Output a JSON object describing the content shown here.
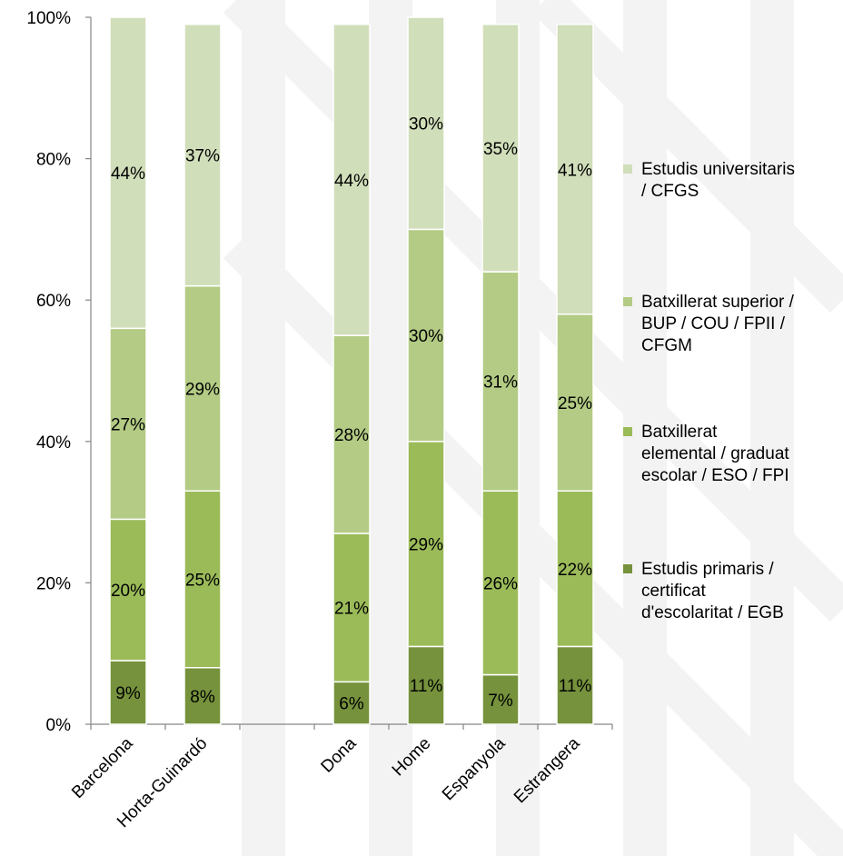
{
  "chart_data": {
    "type": "stacked-bar-100",
    "categories": [
      "Barcelona",
      "Horta-Guinardó",
      "",
      "Dona",
      "Home",
      "Espanyola",
      "Estrangera"
    ],
    "series": [
      {
        "name": "Estudis primaris / certificat d'escolaritat / EGB",
        "color": "#76923c",
        "values": [
          9,
          8,
          null,
          6,
          11,
          7,
          11
        ],
        "labels": [
          "9%",
          "8%",
          "",
          "6%",
          "11%",
          "7%",
          "11%"
        ]
      },
      {
        "name": "Batxillerat elemental / graduat escolar / ESO / FPI",
        "color": "#9bbb59",
        "values": [
          20,
          25,
          null,
          21,
          29,
          26,
          22
        ],
        "labels": [
          "20%",
          "25%",
          "",
          "21%",
          "29%",
          "26%",
          "22%"
        ]
      },
      {
        "name": "Batxillerat superior / BUP / COU / FPII / CFGM",
        "color": "#b3cb84",
        "values": [
          27,
          29,
          null,
          28,
          30,
          31,
          25
        ],
        "labels": [
          "27%",
          "29%",
          "",
          "28%",
          "30%",
          "31%",
          "25%"
        ]
      },
      {
        "name": "Estudis universitaris / CFGS",
        "color": "#d1deba",
        "values": [
          44,
          37,
          null,
          44,
          30,
          35,
          41
        ],
        "labels": [
          "44%",
          "37%",
          "",
          "44%",
          "30%",
          "35%",
          "41%"
        ]
      }
    ],
    "yticks": [
      "0%",
      "20%",
      "40%",
      "60%",
      "80%",
      "100%"
    ],
    "ylim": [
      0,
      100
    ],
    "legend": {
      "placement": "right",
      "entries": [
        {
          "lines": [
            "Estudis universitaris",
            "/ CFGS"
          ],
          "color": "#d1deba"
        },
        {
          "lines": [
            "Batxillerat superior /",
            "BUP / COU / FPII /",
            "CFGM"
          ],
          "color": "#b3cb84"
        },
        {
          "lines": [
            "Batxillerat",
            "elemental / graduat",
            "escolar / ESO / FPI"
          ],
          "color": "#9bbb59"
        },
        {
          "lines": [
            "Estudis primaris /",
            "certificat",
            "d'escolaritat / EGB"
          ],
          "color": "#76923c"
        }
      ]
    },
    "grid": false
  }
}
